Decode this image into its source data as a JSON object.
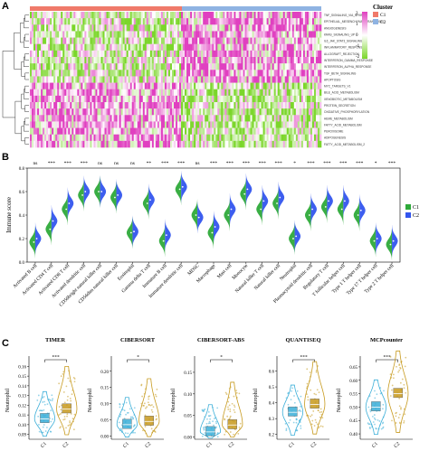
{
  "panels": {
    "a_letter": "A",
    "b_letter": "B",
    "c_letter": "C"
  },
  "heatmap": {
    "legend_title": "Cluster",
    "groups": [
      {
        "name": "C1",
        "color": "#f07a6a"
      },
      {
        "name": "C2",
        "color": "#8fb3e2"
      }
    ],
    "scale_ticks": [
      "2",
      "1",
      "0",
      "-1",
      "-2"
    ],
    "colors": {
      "high": "#e040c0",
      "mid": "#ffffff",
      "low": "#7bd62a"
    },
    "rows": [
      "TNF_SIGNALING_VIA_NFKB",
      "EPITHELIAL_MESENCHYMAL_TRANSITION",
      "ANGIOGENESIS",
      "KRAS_SIGNALING_UP",
      "IL6_JAK_STAT3_SIGNALING",
      "INFLAMMATORY_RESPONSE",
      "ALLOGRAFT_REJECTION",
      "INTERFERON_GAMMA_RESPONSE",
      "INTERFERON_ALPHA_RESPONSE",
      "TGF_BETA_SIGNALING",
      "APOPTOSIS",
      "MYC_TARGETS_V1",
      "BILE_ACID_METABOLISM",
      "XENOBIOTIC_METABOLISM",
      "PROTEIN_SECRETION",
      "OXIDATIVE_PHOSPHORYLATION",
      "HEME_METABOLISM",
      "FATTY_ACID_METABOLISM",
      "PEROXISOME",
      "ADIPOGENESIS",
      "FATTY_ACID_METABOLISM_2"
    ]
  },
  "chart_data": [
    {
      "type": "violin",
      "panel": "B",
      "ylabel": "Immune score",
      "legend": [
        {
          "name": "C1",
          "color": "#2eaa3a"
        },
        {
          "name": "C2",
          "color": "#3355ee"
        }
      ],
      "categories": [
        "Activated B cell",
        "Activated CD4 T cell",
        "Activated CD8 T cell",
        "Activated dendritic cell",
        "CD56bright natural killer cell",
        "CD56dim natural killer cell",
        "Eosinophil",
        "Gamma delta T cell",
        "Immature B cell",
        "Immature dendritic cell",
        "MDSC",
        "Macrophage",
        "Mast cell",
        "Monocyte",
        "Natural killer T cell",
        "Natural killer cell",
        "Neutrophil",
        "Plasmacytoid dendritic cell",
        "Regulatory T cell",
        "T follicular helper cell",
        "Type 1 T helper cell",
        "Type 17 T helper cell",
        "Type 2 T helper cell"
      ],
      "significance": [
        "ns",
        "***",
        "***",
        "***",
        "ns",
        "ns",
        "ns",
        "**",
        "***",
        "***",
        "ns",
        "***",
        "***",
        "***",
        "***",
        "***",
        "*",
        "***",
        "***",
        "***",
        "***",
        "*",
        "***"
      ],
      "series": [
        {
          "name": "C1",
          "values": [
            0.17,
            0.28,
            0.45,
            0.57,
            0.6,
            0.55,
            0.25,
            0.5,
            0.18,
            0.62,
            0.4,
            0.25,
            0.4,
            0.58,
            0.45,
            0.5,
            0.2,
            0.4,
            0.47,
            0.45,
            0.4,
            0.18,
            0.15
          ]
        },
        {
          "name": "C2",
          "values": [
            0.2,
            0.35,
            0.5,
            0.6,
            0.6,
            0.57,
            0.26,
            0.53,
            0.23,
            0.64,
            0.38,
            0.3,
            0.45,
            0.62,
            0.52,
            0.55,
            0.22,
            0.45,
            0.52,
            0.52,
            0.44,
            0.2,
            0.18
          ]
        }
      ]
    },
    {
      "type": "violin",
      "panel": "C",
      "title": "TIMER",
      "ylabel": "Neutrophil",
      "categories": [
        "C1",
        "C2"
      ],
      "sig": "***",
      "yticks": [
        "0.09",
        "0.10",
        "0.11",
        "0.12",
        "0.13",
        "0.14",
        "0.15",
        "0.16"
      ],
      "ylim": [
        0.085,
        0.165
      ],
      "medians": [
        0.106,
        0.116
      ],
      "colors": [
        "#3aaed8",
        "#c79a1e"
      ]
    },
    {
      "type": "violin",
      "panel": "C",
      "title": "CIBERSORT",
      "ylabel": "Neutrophil",
      "categories": [
        "C1",
        "C2"
      ],
      "sig": "*",
      "yticks": [
        "0.00",
        "0.05",
        "0.10",
        "0.15",
        "0.20"
      ],
      "ylim": [
        -0.01,
        0.23
      ],
      "medians": [
        0.035,
        0.045
      ],
      "colors": [
        "#3aaed8",
        "#c79a1e"
      ]
    },
    {
      "type": "violin",
      "panel": "C",
      "title": "CIBERSORT-ABS",
      "ylabel": "Neutrophil",
      "categories": [
        "C1",
        "C2"
      ],
      "sig": "*",
      "yticks": [
        "0.00",
        "0.05",
        "0.10",
        "0.15"
      ],
      "ylim": [
        -0.005,
        0.175
      ],
      "medians": [
        0.012,
        0.028
      ],
      "colors": [
        "#3aaed8",
        "#c79a1e"
      ]
    },
    {
      "type": "violin",
      "panel": "C",
      "title": "QUANTISEQ",
      "ylabel": "Neutrophil",
      "categories": [
        "C1",
        "C2"
      ],
      "sig": "***",
      "yticks": [
        "0.2",
        "0.3",
        "0.4",
        "0.5",
        "0.6"
      ],
      "ylim": [
        0.17,
        0.66
      ],
      "medians": [
        0.34,
        0.39
      ],
      "colors": [
        "#3aaed8",
        "#c79a1e"
      ]
    },
    {
      "type": "violin",
      "panel": "C",
      "title": "MCPcounter",
      "ylabel": "Neutrophil",
      "categories": [
        "C1",
        "C2"
      ],
      "sig": "***",
      "yticks": [
        "0.40",
        "0.45",
        "0.50",
        "0.55",
        "0.60",
        "0.65"
      ],
      "ylim": [
        0.38,
        0.67
      ],
      "medians": [
        0.5,
        0.55
      ],
      "colors": [
        "#3aaed8",
        "#c79a1e"
      ]
    }
  ]
}
